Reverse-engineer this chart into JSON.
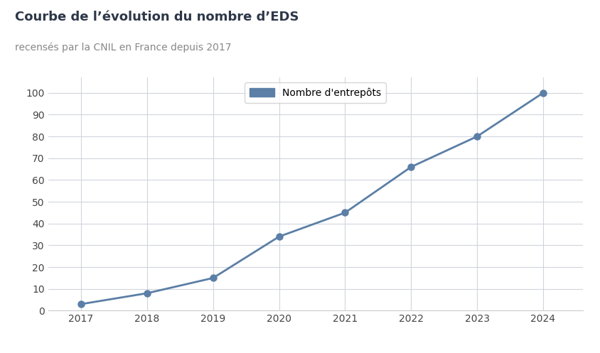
{
  "title": "Courbe de l’évolution du nombre d’EDS",
  "subtitle": "recensés par la CNIL en France depuis 2017",
  "years": [
    2017,
    2018,
    2019,
    2020,
    2021,
    2022,
    2023,
    2024
  ],
  "values": [
    3,
    8,
    15,
    34,
    45,
    66,
    80,
    100
  ],
  "line_color": "#5b7fa6",
  "marker_color": "#5b7fa6",
  "background_color": "#ffffff",
  "grid_color": "#d0d5dd",
  "title_color": "#2d3748",
  "subtitle_color": "#888888",
  "legend_label": "Nombre d'entrepôts",
  "ylim": [
    0,
    107
  ],
  "yticks": [
    0,
    10,
    20,
    30,
    40,
    50,
    60,
    70,
    80,
    90,
    100
  ],
  "title_fontsize": 13,
  "subtitle_fontsize": 10,
  "tick_fontsize": 10,
  "legend_fontsize": 10
}
